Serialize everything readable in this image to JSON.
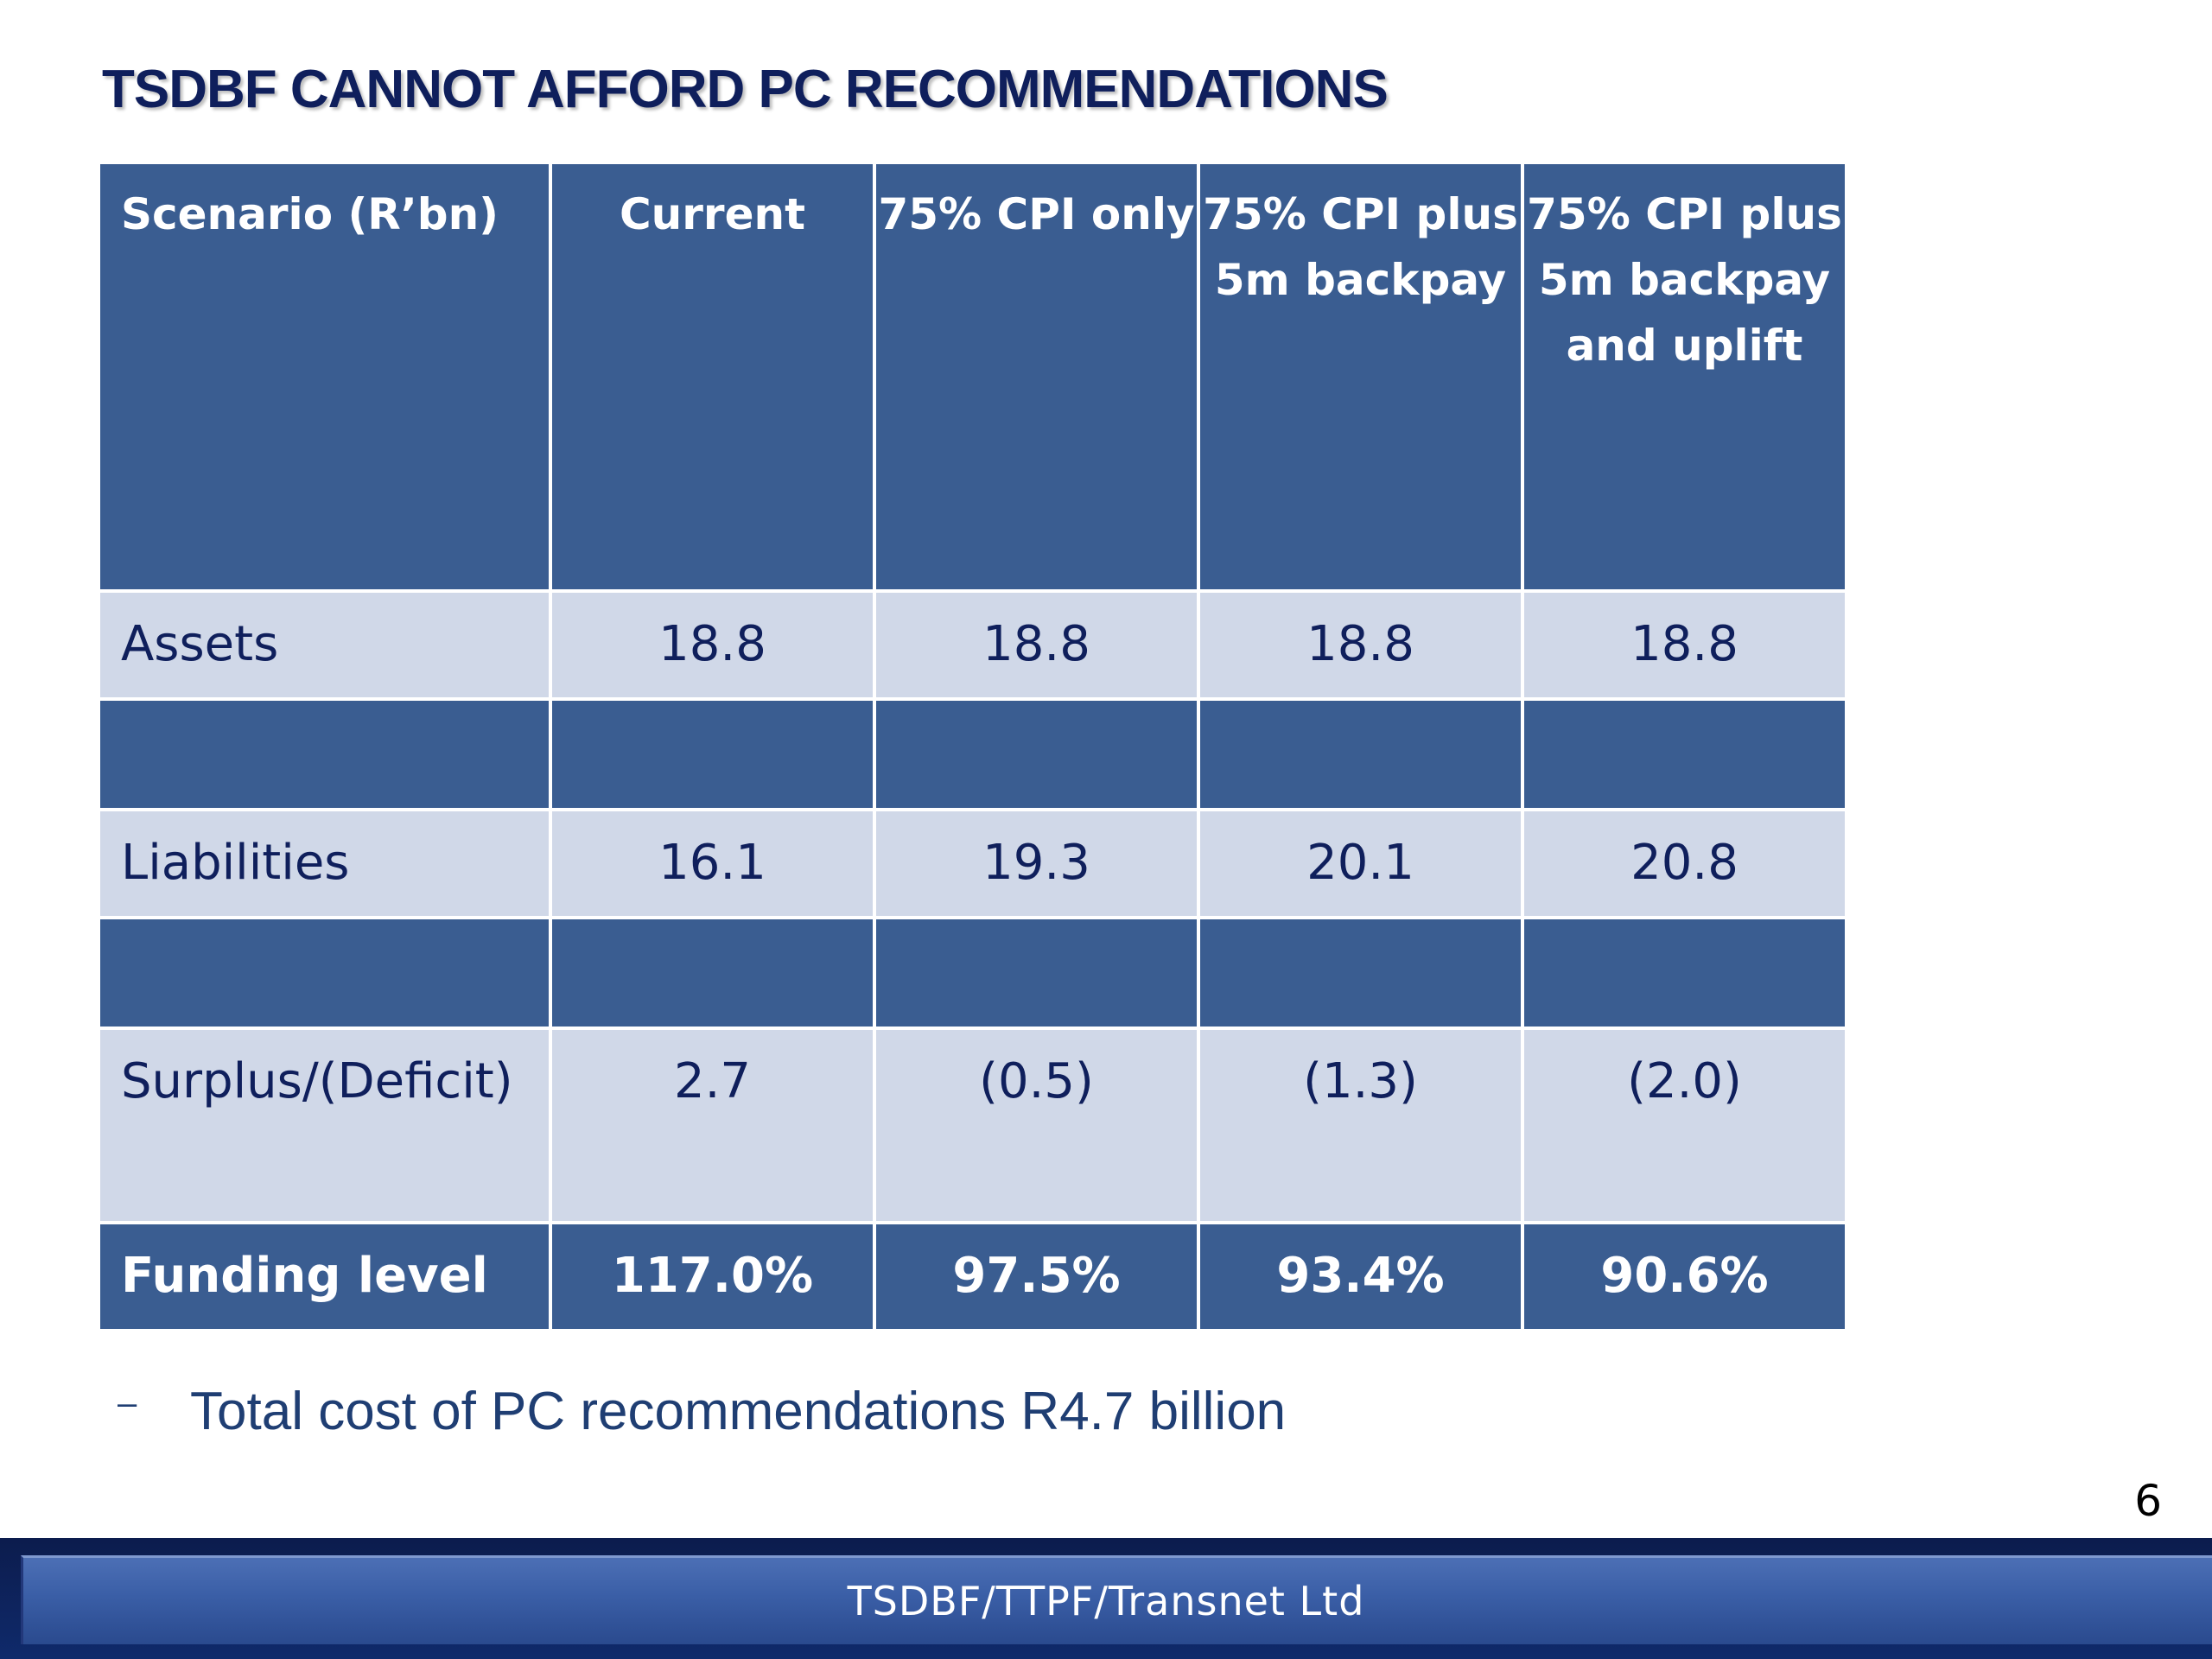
{
  "slide": {
    "title": "TSDBF CANNOT AFFORD PC RECOMMENDATIONS",
    "page_number": "6",
    "footer_text": "TSDBF/TTPF/Transnet  Ltd"
  },
  "table": {
    "headers": [
      "Scenario (R’bn)",
      "Current",
      "75% CPI only",
      "75% CPI plus 5m backpay",
      "75% CPI plus 5m backpay and uplift"
    ],
    "rows": {
      "assets": {
        "label": "Assets",
        "values": [
          "18.8",
          "18.8",
          "18.8",
          "18.8"
        ]
      },
      "liabilities": {
        "label": "Liabilities",
        "values": [
          "16.1",
          "19.3",
          "20.1",
          "20.8"
        ]
      },
      "surplus": {
        "label": "Surplus/(Deficit)",
        "values": [
          "2.7",
          "(0.5)",
          "(1.3)",
          "(2.0)"
        ]
      },
      "funding": {
        "label": "Funding level",
        "values": [
          "117.0%",
          "97.5%",
          "93.4%",
          "90.6%"
        ]
      }
    }
  },
  "bullets": [
    {
      "marker": "–",
      "text": "Total cost of PC recommendations R4.7 billion"
    }
  ],
  "colors": {
    "header_blue": "#3a5d91",
    "light_row": "#d0d8e8",
    "title_navy": "#0f1f5c"
  }
}
